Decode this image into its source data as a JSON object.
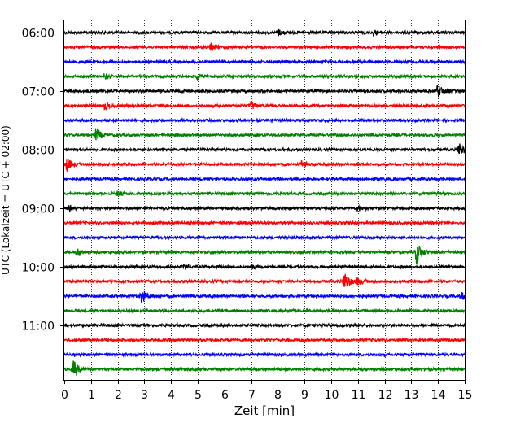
{
  "chart_data": {
    "type": "line",
    "title": "",
    "xlabel": "Zeit  [min]",
    "ylabel": "UTC (Lokalzeit = UTC + 02:00)",
    "xlim": [
      0,
      15
    ],
    "xticks": [
      0,
      1,
      2,
      3,
      4,
      5,
      6,
      7,
      8,
      9,
      10,
      11,
      12,
      13,
      14,
      15
    ],
    "xtick_labels": [
      "0",
      "1",
      "2",
      "3",
      "4",
      "5",
      "6",
      "7",
      "8",
      "9",
      "10",
      "11",
      "12",
      "13",
      "14",
      "15"
    ],
    "ytick_labels": [
      "06:00",
      "07:00",
      "08:00",
      "09:00",
      "10:00",
      "11:00"
    ],
    "ytick_row_index": [
      0,
      4,
      8,
      12,
      16,
      20
    ],
    "grid": "vertical dotted",
    "colors": [
      "#000000",
      "#ff0000",
      "#0000ff",
      "#008000"
    ],
    "row_interval_minutes": 15,
    "series": [
      {
        "start": "06:00",
        "color": "#000000",
        "events": [
          {
            "t": 8.0,
            "amp": 0.45
          },
          {
            "t": 11.6,
            "amp": 0.3
          }
        ]
      },
      {
        "start": "06:15",
        "color": "#ff0000",
        "events": [
          {
            "t": 5.5,
            "amp": 0.5
          }
        ]
      },
      {
        "start": "06:30",
        "color": "#0000ff",
        "events": []
      },
      {
        "start": "06:45",
        "color": "#008000",
        "events": [
          {
            "t": 1.5,
            "amp": 0.3
          },
          {
            "t": 5.0,
            "amp": 0.3
          }
        ]
      },
      {
        "start": "07:00",
        "color": "#000000",
        "events": [
          {
            "t": 14.0,
            "amp": 0.9
          }
        ]
      },
      {
        "start": "07:15",
        "color": "#ff0000",
        "events": [
          {
            "t": 1.5,
            "amp": 0.5
          },
          {
            "t": 7.0,
            "amp": 0.6
          }
        ]
      },
      {
        "start": "07:30",
        "color": "#0000ff",
        "events": []
      },
      {
        "start": "07:45",
        "color": "#008000",
        "events": [
          {
            "t": 1.2,
            "amp": 1.0
          }
        ]
      },
      {
        "start": "08:00",
        "color": "#000000",
        "events": [
          {
            "t": 14.8,
            "amp": 1.0
          }
        ]
      },
      {
        "start": "08:15",
        "color": "#ff0000",
        "events": [
          {
            "t": 0.1,
            "amp": 0.9
          },
          {
            "t": 8.9,
            "amp": 0.4
          }
        ]
      },
      {
        "start": "08:30",
        "color": "#0000ff",
        "events": []
      },
      {
        "start": "08:45",
        "color": "#008000",
        "events": [
          {
            "t": 2.0,
            "amp": 0.3
          }
        ]
      },
      {
        "start": "09:00",
        "color": "#000000",
        "events": [
          {
            "t": 0.2,
            "amp": 0.4
          },
          {
            "t": 11.0,
            "amp": 0.35
          }
        ]
      },
      {
        "start": "09:15",
        "color": "#ff0000",
        "events": []
      },
      {
        "start": "09:30",
        "color": "#0000ff",
        "events": []
      },
      {
        "start": "09:45",
        "color": "#008000",
        "events": [
          {
            "t": 0.5,
            "amp": 0.6
          },
          {
            "t": 13.2,
            "amp": 1.6
          }
        ]
      },
      {
        "start": "10:00",
        "color": "#000000",
        "events": [
          {
            "t": 4.5,
            "amp": 0.3
          },
          {
            "t": 7.0,
            "amp": 0.3
          }
        ]
      },
      {
        "start": "10:15",
        "color": "#ff0000",
        "events": [
          {
            "t": 10.5,
            "amp": 1.4
          },
          {
            "t": 11.0,
            "amp": 0.5
          }
        ]
      },
      {
        "start": "10:30",
        "color": "#0000ff",
        "events": [
          {
            "t": 2.9,
            "amp": 1.0
          },
          {
            "t": 14.9,
            "amp": 0.5
          }
        ]
      },
      {
        "start": "10:45",
        "color": "#008000",
        "events": []
      },
      {
        "start": "11:00",
        "color": "#000000",
        "events": []
      },
      {
        "start": "11:15",
        "color": "#ff0000",
        "events": []
      },
      {
        "start": "11:30",
        "color": "#0000ff",
        "events": []
      },
      {
        "start": "11:45",
        "color": "#008000",
        "events": [
          {
            "t": 0.35,
            "amp": 1.2
          }
        ]
      }
    ]
  }
}
